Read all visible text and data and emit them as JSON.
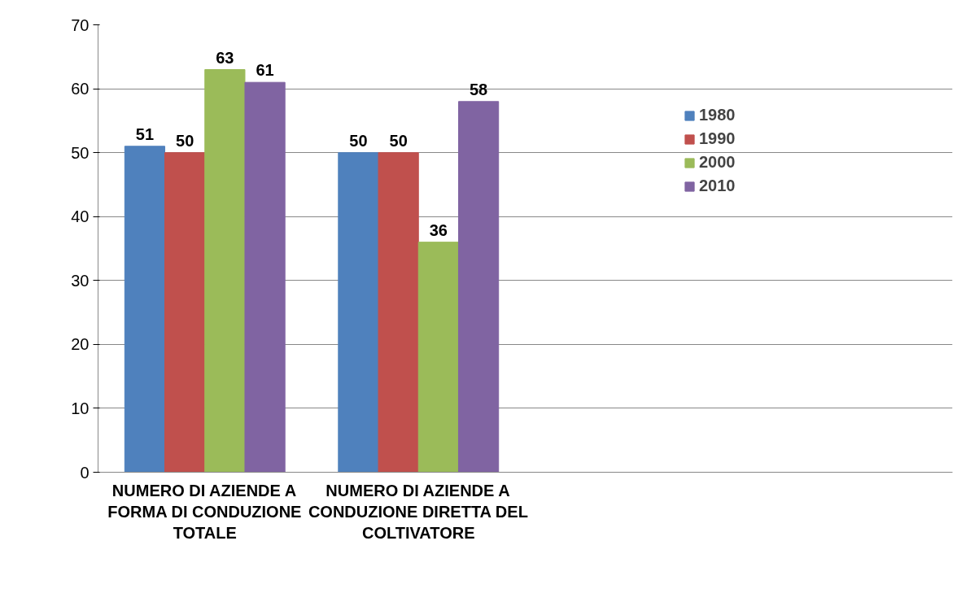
{
  "chart_data": {
    "type": "bar",
    "categories": [
      "NUMERO DI AZIENDE A FORMA DI CONDUZIONE TOTALE",
      "NUMERO DI AZIENDE A CONDUZIONE DIRETTA DEL COLTIVATORE",
      null,
      null
    ],
    "series": [
      {
        "name": "1980",
        "color": "#4f81bd",
        "values": [
          51,
          50,
          null,
          null
        ]
      },
      {
        "name": "1990",
        "color": "#c0504d",
        "values": [
          50,
          50,
          null,
          null
        ]
      },
      {
        "name": "2000",
        "color": "#9bbb59",
        "values": [
          63,
          36,
          null,
          null
        ]
      },
      {
        "name": "2010",
        "color": "#8064a2",
        "values": [
          61,
          58,
          null,
          null
        ]
      }
    ],
    "ylim": [
      0,
      70
    ],
    "yticks": [
      0,
      10,
      20,
      30,
      40,
      50,
      60,
      70
    ],
    "grid": "y",
    "legend": "right",
    "data_labels": true
  }
}
